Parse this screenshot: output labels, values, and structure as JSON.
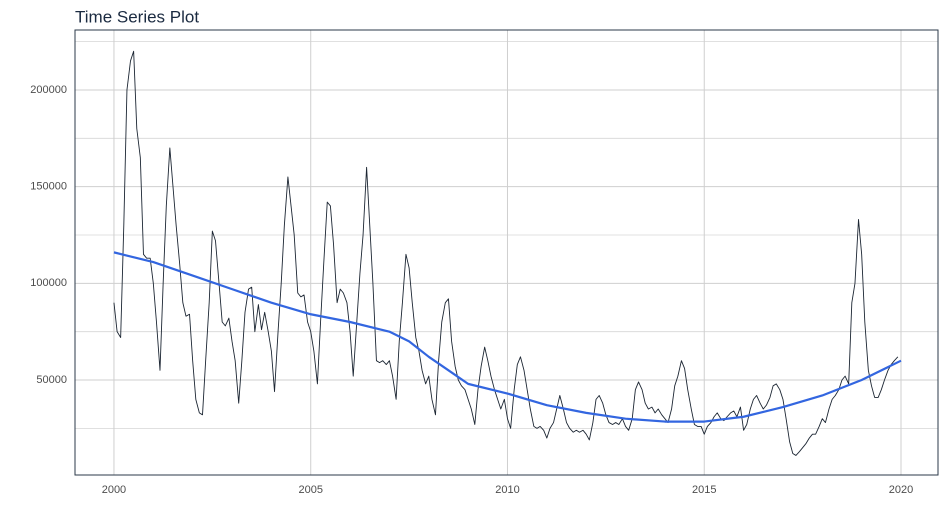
{
  "chart_data": {
    "type": "line",
    "title": "Time Series Plot",
    "xlim": [
      1999.01,
      2020.94
    ],
    "ylim": [
      880,
      231000
    ],
    "xticks": [
      2000,
      2005,
      2010,
      2015,
      2020
    ],
    "yticks": [
      50000,
      100000,
      150000,
      200000
    ],
    "y_minor_grid": [
      25000,
      75000,
      125000,
      175000,
      225000
    ],
    "grid": true,
    "series": [
      {
        "color": "#1c2633",
        "width": 0.9,
        "x": [
          2000,
          2000.08,
          2000.17,
          2000.25,
          2000.33,
          2000.42,
          2000.5,
          2000.58,
          2000.67,
          2000.75,
          2000.83,
          2000.92,
          2001,
          2001.08,
          2001.17,
          2001.25,
          2001.33,
          2001.42,
          2001.5,
          2001.58,
          2001.67,
          2001.75,
          2001.83,
          2001.92,
          2002,
          2002.08,
          2002.17,
          2002.25,
          2002.33,
          2002.42,
          2002.5,
          2002.58,
          2002.67,
          2002.75,
          2002.83,
          2002.92,
          2003,
          2003.08,
          2003.17,
          2003.25,
          2003.33,
          2003.42,
          2003.5,
          2003.58,
          2003.67,
          2003.75,
          2003.83,
          2003.92,
          2004,
          2004.08,
          2004.17,
          2004.25,
          2004.33,
          2004.42,
          2004.5,
          2004.58,
          2004.67,
          2004.75,
          2004.83,
          2004.92,
          2005,
          2005.08,
          2005.17,
          2005.25,
          2005.33,
          2005.42,
          2005.5,
          2005.58,
          2005.67,
          2005.75,
          2005.83,
          2005.92,
          2006,
          2006.08,
          2006.17,
          2006.25,
          2006.33,
          2006.42,
          2006.5,
          2006.58,
          2006.67,
          2006.75,
          2006.83,
          2006.92,
          2007,
          2007.08,
          2007.17,
          2007.25,
          2007.33,
          2007.42,
          2007.5,
          2007.58,
          2007.67,
          2007.75,
          2007.83,
          2007.92,
          2008,
          2008.08,
          2008.17,
          2008.25,
          2008.33,
          2008.42,
          2008.5,
          2008.58,
          2008.67,
          2008.75,
          2008.83,
          2008.92,
          2009,
          2009.08,
          2009.17,
          2009.25,
          2009.33,
          2009.42,
          2009.5,
          2009.58,
          2009.67,
          2009.75,
          2009.83,
          2009.92,
          2010,
          2010.08,
          2010.17,
          2010.25,
          2010.33,
          2010.42,
          2010.5,
          2010.58,
          2010.67,
          2010.75,
          2010.83,
          2010.92,
          2011,
          2011.08,
          2011.17,
          2011.25,
          2011.33,
          2011.42,
          2011.5,
          2011.58,
          2011.67,
          2011.75,
          2011.83,
          2011.92,
          2012,
          2012.08,
          2012.17,
          2012.25,
          2012.33,
          2012.42,
          2012.5,
          2012.58,
          2012.67,
          2012.75,
          2012.83,
          2012.92,
          2013,
          2013.08,
          2013.17,
          2013.25,
          2013.33,
          2013.42,
          2013.5,
          2013.58,
          2013.67,
          2013.75,
          2013.83,
          2013.92,
          2014,
          2014.08,
          2014.17,
          2014.25,
          2014.33,
          2014.42,
          2014.5,
          2014.58,
          2014.67,
          2014.75,
          2014.83,
          2014.92,
          2015,
          2015.08,
          2015.17,
          2015.25,
          2015.33,
          2015.42,
          2015.5,
          2015.58,
          2015.67,
          2015.75,
          2015.83,
          2015.92,
          2016,
          2016.08,
          2016.17,
          2016.25,
          2016.33,
          2016.42,
          2016.5,
          2016.58,
          2016.67,
          2016.75,
          2016.83,
          2016.92,
          2017,
          2017.08,
          2017.17,
          2017.25,
          2017.33,
          2017.42,
          2017.5,
          2017.58,
          2017.67,
          2017.75,
          2017.83,
          2017.92,
          2018,
          2018.08,
          2018.17,
          2018.25,
          2018.33,
          2018.42,
          2018.5,
          2018.58,
          2018.67,
          2018.75,
          2018.83,
          2018.92,
          2019,
          2019.08,
          2019.17,
          2019.25,
          2019.33,
          2019.42,
          2019.5,
          2019.58,
          2019.67,
          2019.75,
          2019.83,
          2019.92
        ],
        "values": [
          90000,
          75000,
          72000,
          130000,
          200000,
          215000,
          220000,
          180000,
          165000,
          115000,
          113000,
          113000,
          100000,
          80000,
          55000,
          100000,
          140000,
          170000,
          150000,
          130000,
          110000,
          90000,
          83000,
          84000,
          60000,
          40000,
          33000,
          32000,
          60000,
          90000,
          127000,
          122000,
          100000,
          80000,
          78000,
          82000,
          70000,
          60000,
          38000,
          60000,
          85000,
          97000,
          98000,
          75000,
          89000,
          76000,
          85000,
          75000,
          65000,
          44000,
          75000,
          100000,
          130000,
          155000,
          140000,
          125000,
          95000,
          93000,
          94000,
          80000,
          75000,
          65000,
          48000,
          80000,
          110000,
          142000,
          140000,
          120000,
          90000,
          97000,
          95000,
          90000,
          75000,
          52000,
          80000,
          105000,
          125000,
          160000,
          130000,
          100000,
          60000,
          59000,
          60000,
          58000,
          60000,
          52000,
          40000,
          70000,
          90000,
          115000,
          108000,
          90000,
          72000,
          65000,
          55000,
          48000,
          52000,
          40000,
          32000,
          60000,
          80000,
          90000,
          92000,
          70000,
          57000,
          50000,
          47000,
          45000,
          40000,
          35000,
          27000,
          45000,
          57000,
          67000,
          60000,
          52000,
          45000,
          40000,
          35000,
          40000,
          30000,
          25000,
          45000,
          58000,
          62000,
          55000,
          45000,
          35000,
          26000,
          25000,
          26000,
          24000,
          20000,
          25000,
          28000,
          35000,
          42000,
          35000,
          28000,
          25000,
          23000,
          24000,
          23000,
          24000,
          22000,
          19000,
          28000,
          40000,
          42000,
          38000,
          32000,
          28000,
          27000,
          28000,
          27000,
          30000,
          26000,
          24000,
          30000,
          45000,
          49000,
          45000,
          38000,
          35000,
          36000,
          33000,
          35000,
          32000,
          30000,
          28000,
          35000,
          47000,
          52000,
          60000,
          56000,
          45000,
          35000,
          27000,
          26000,
          26000,
          22000,
          26000,
          28000,
          31000,
          33000,
          30000,
          29000,
          31000,
          33000,
          34000,
          31000,
          36000,
          24000,
          27000,
          35000,
          40000,
          42000,
          38000,
          35000,
          37000,
          41000,
          47000,
          48000,
          45000,
          40000,
          30000,
          18000,
          12000,
          11000,
          13000,
          15000,
          17000,
          20000,
          22000,
          22000,
          26000,
          30000,
          28000,
          35000,
          40000,
          42000,
          45000,
          50000,
          52000,
          48000,
          90000,
          100000,
          133000,
          115000,
          80000,
          55000,
          47000,
          41000,
          41000,
          45000,
          50000,
          55000,
          58000,
          60000,
          62000
        ]
      },
      {
        "color": "#3366e0",
        "width": 2.2,
        "x": [
          2000,
          2001,
          2002,
          2003,
          2004,
          2005,
          2006,
          2007,
          2007.5,
          2008,
          2008.5,
          2009,
          2010,
          2011,
          2012,
          2013,
          2014,
          2015,
          2016,
          2017,
          2018,
          2019,
          2020
        ],
        "values": [
          116000,
          111000,
          104000,
          97000,
          90000,
          84000,
          80000,
          75000,
          70000,
          62000,
          55000,
          48000,
          43000,
          37000,
          33000,
          30000,
          28500,
          28500,
          31000,
          36000,
          42000,
          50000,
          60000
        ]
      }
    ]
  }
}
